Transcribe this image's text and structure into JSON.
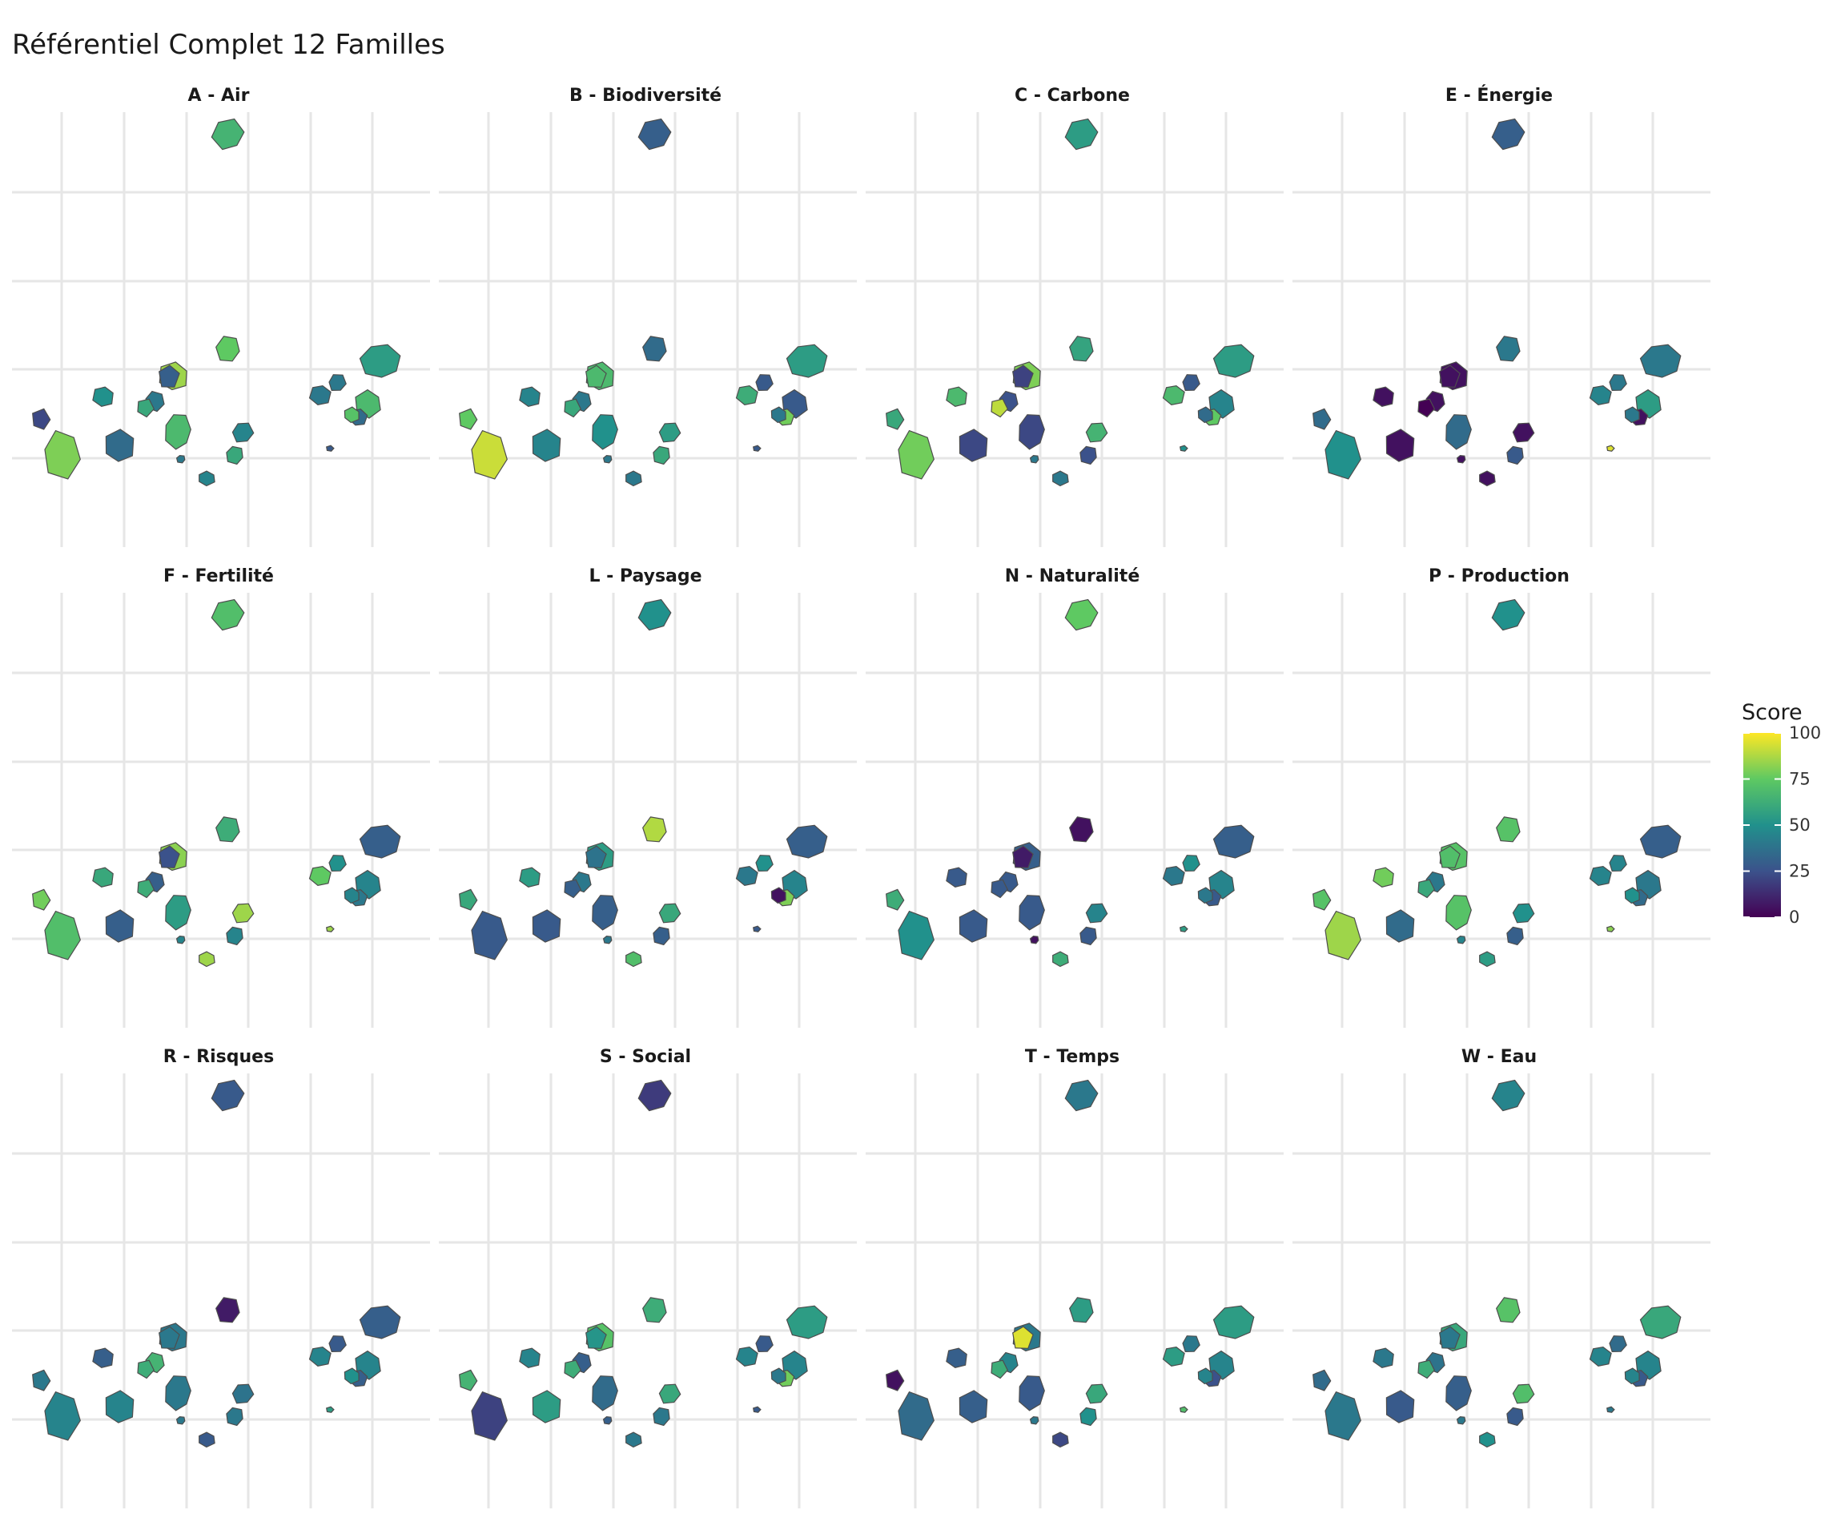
{
  "chart_data": {
    "type": "choropleth-map-facets",
    "title": "Référentiel Complet 12 Familles",
    "legend": {
      "title": "Score",
      "range": [
        0,
        100
      ],
      "ticks": [
        0,
        25,
        50,
        75,
        100
      ],
      "palette": [
        "#440154",
        "#3b528b",
        "#21918c",
        "#5ec962",
        "#fde725"
      ],
      "placement": "right"
    },
    "grid": true,
    "region_ids": [
      "r01",
      "r02",
      "r03",
      "r04",
      "r05",
      "r06",
      "r07",
      "r08",
      "r09",
      "r10",
      "r11",
      "r12",
      "r13",
      "r14",
      "r15",
      "r16",
      "r17",
      "r18",
      "r19",
      "r20",
      "r21",
      "r22"
    ],
    "facets": [
      {
        "label": "A - Air",
        "values": [
          65,
          80,
          35,
          68,
          40,
          85,
          30,
          60,
          50,
          45,
          22,
          40,
          40,
          68,
          35,
          75,
          45,
          55,
          40,
          72,
          28,
          60
        ]
      },
      {
        "label": "B - Biodiversité",
        "values": [
          30,
          92,
          45,
          50,
          40,
          68,
          68,
          60,
          45,
          55,
          75,
          62,
          28,
          28,
          78,
          35,
          40,
          55,
          40,
          40,
          28,
          60
        ]
      },
      {
        "label": "C - Carbone",
        "values": [
          55,
          78,
          22,
          22,
          25,
          80,
          20,
          90,
          68,
          65,
          60,
          68,
          28,
          45,
          75,
          58,
          40,
          55,
          40,
          35,
          50,
          25
        ]
      },
      {
        "label": "E - Énergie",
        "values": [
          30,
          50,
          5,
          35,
          5,
          5,
          5,
          0,
          5,
          5,
          35,
          45,
          40,
          55,
          5,
          40,
          5,
          40,
          5,
          40,
          95,
          28
        ]
      },
      {
        "label": "F - Fertilité",
        "values": [
          70,
          70,
          30,
          55,
          30,
          82,
          25,
          62,
          60,
          85,
          78,
          75,
          50,
          45,
          40,
          62,
          85,
          30,
          45,
          45,
          85,
          45
        ]
      },
      {
        "label": "L - Paysage",
        "values": [
          50,
          28,
          28,
          30,
          40,
          55,
          38,
          30,
          55,
          60,
          60,
          40,
          50,
          45,
          80,
          88,
          70,
          30,
          40,
          5,
          28,
          30
        ]
      },
      {
        "label": "N - Naturalité",
        "values": [
          75,
          50,
          28,
          28,
          28,
          30,
          8,
          28,
          28,
          45,
          62,
          40,
          50,
          45,
          28,
          5,
          62,
          30,
          5,
          40,
          55,
          28
        ]
      },
      {
        "label": "P - Production",
        "values": [
          50,
          85,
          35,
          72,
          40,
          72,
          70,
          60,
          78,
          50,
          72,
          45,
          45,
          40,
          35,
          72,
          55,
          30,
          45,
          50,
          82,
          30
        ]
      },
      {
        "label": "R - Risques",
        "values": [
          28,
          45,
          45,
          40,
          65,
          40,
          40,
          62,
          30,
          38,
          40,
          45,
          28,
          45,
          30,
          8,
          28,
          30,
          40,
          50,
          55,
          40
        ]
      },
      {
        "label": "S - Social",
        "values": [
          18,
          20,
          55,
          35,
          30,
          72,
          52,
          62,
          45,
          60,
          65,
          45,
          28,
          45,
          78,
          62,
          40,
          55,
          30,
          40,
          28,
          40
        ]
      },
      {
        "label": "T - Temps",
        "values": [
          40,
          35,
          30,
          28,
          45,
          40,
          95,
          62,
          30,
          60,
          5,
          55,
          40,
          45,
          25,
          55,
          22,
          55,
          40,
          45,
          70,
          50
        ]
      },
      {
        "label": "W - Eau",
        "values": [
          45,
          40,
          28,
          30,
          38,
          60,
          40,
          62,
          40,
          70,
          35,
          45,
          35,
          45,
          28,
          72,
          50,
          60,
          40,
          45,
          40,
          28
        ]
      }
    ]
  }
}
